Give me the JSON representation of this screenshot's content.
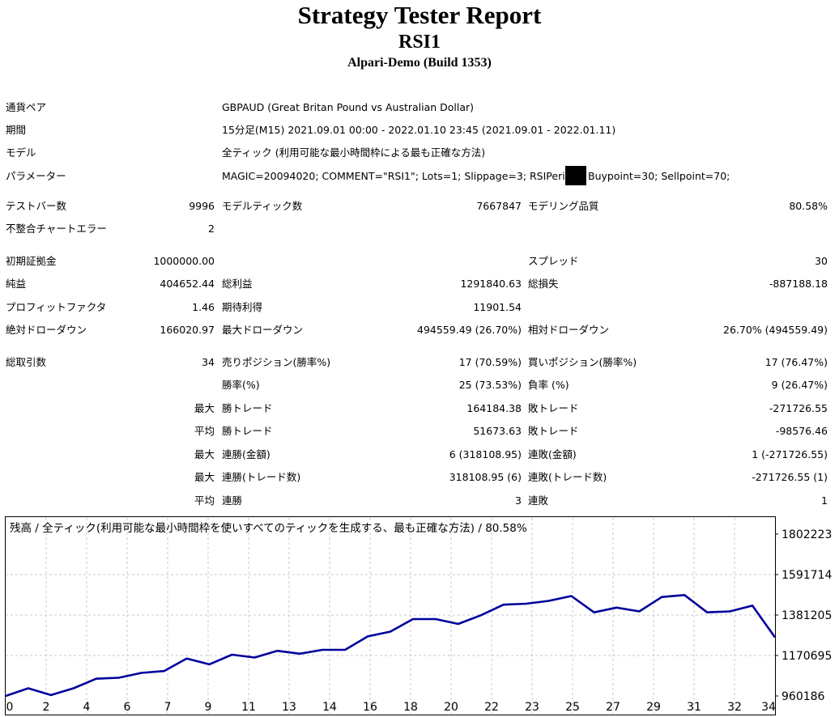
{
  "report": {
    "title": "Strategy Tester Report",
    "subtitle": "RSI1",
    "server": "Alpari-Demo (Build 1353)"
  },
  "summary": {
    "symbol_label": "通貨ペア",
    "symbol_value": "GBPAUD (Great Britan Pound vs Australian Dollar)",
    "period_label": "期間",
    "period_value": "15分足(M15) 2021.09.01 00:00 - 2022.01.10 23:45 (2021.09.01 - 2022.01.11)",
    "model_label": "モデル",
    "model_value": "全ティック (利用可能な最小時間枠による最も正確な方法)",
    "params_label": "パラメーター",
    "params_value_1": "MAGIC=20094020; COMMENT=\"RSI1\"; Lots=1; Slippage=3; RSIPeriod=",
    "params_value_2": "Buypoint=30; Sellpoint=70;",
    "bars_label": "テストバー数",
    "bars_value": "9996",
    "ticks_label": "モデルティック数",
    "ticks_value": "7667847",
    "quality_label": "モデリング品質",
    "quality_value": "80.58%",
    "mismatch_label": "不整合チャートエラー",
    "mismatch_value": "2"
  },
  "results": {
    "deposit_label": "初期証拠金",
    "deposit_value": "1000000.00",
    "spread_label": "スプレッド",
    "spread_value": "30",
    "net_profit_label": "純益",
    "net_profit_value": "404652.44",
    "gross_profit_label": "総利益",
    "gross_profit_value": "1291840.63",
    "gross_loss_label": "総損失",
    "gross_loss_value": "-887188.18",
    "profit_factor_label": "プロフィットファクタ",
    "profit_factor_value": "1.46",
    "expected_payoff_label": "期待利得",
    "expected_payoff_value": "11901.54",
    "abs_dd_label": "絶対ドローダウン",
    "abs_dd_value": "166020.97",
    "max_dd_label": "最大ドローダウン",
    "max_dd_value": "494559.49 (26.70%)",
    "rel_dd_label": "相対ドローダウン",
    "rel_dd_value": "26.70% (494559.49)",
    "total_trades_label": "総取引数",
    "total_trades_value": "34",
    "short_label": "売りポジション(勝率%)",
    "short_value": "17 (70.59%)",
    "long_label": "買いポジション(勝率%)",
    "long_value": "17 (76.47%)",
    "win_rate_label": "勝率(%)",
    "win_rate_value": "25 (73.53%)",
    "loss_rate_label": "負率 (%)",
    "loss_rate_value": "9 (26.47%)",
    "largest_label": "最大",
    "largest_win_label": "勝トレード",
    "largest_win_value": "164184.38",
    "largest_loss_label": "敗トレード",
    "largest_loss_value": "-271726.55",
    "average_label": "平均",
    "avg_win_label": "勝トレード",
    "avg_win_value": "51673.63",
    "avg_loss_label": "敗トレード",
    "avg_loss_value": "-98576.46",
    "max_cons_label": "最大",
    "max_cons_wins_label": "連勝(金額)",
    "max_cons_wins_value": "6 (318108.95)",
    "max_cons_losses_label": "連敗(金額)",
    "max_cons_losses_value": "1 (-271726.55)",
    "max_cons2_label": "最大",
    "max_cons_profit_label": "連勝(トレード数)",
    "max_cons_profit_value": "318108.95 (6)",
    "max_cons_loss_label": "連敗(トレード数)",
    "max_cons_loss_value": "-271726.55 (1)",
    "avg_cons_label": "平均",
    "avg_cons_wins_label": "連勝",
    "avg_cons_wins_value": "3",
    "avg_cons_losses_label": "連敗",
    "avg_cons_losses_value": "1"
  },
  "chart_data": {
    "type": "line",
    "title": "残高 / 全ティック(利用可能な最小時間枠を使いすべてのティックを生成する、最も正確な方法) / 80.58%",
    "x_ticks": [
      "0",
      "2",
      "4",
      "6",
      "7",
      "9",
      "11",
      "13",
      "14",
      "16",
      "18",
      "20",
      "22",
      "23",
      "25",
      "27",
      "29",
      "31",
      "32",
      "34"
    ],
    "y_ticks": [
      "1802223",
      "1591714",
      "1381205",
      "1170695",
      "960186"
    ],
    "ylim": [
      960186,
      1802223
    ],
    "xlim": [
      0,
      34
    ],
    "x": [
      0,
      1,
      2,
      3,
      4,
      5,
      6,
      7,
      8,
      9,
      10,
      11,
      12,
      13,
      14,
      15,
      16,
      17,
      18,
      19,
      20,
      21,
      22,
      23,
      24,
      25,
      26,
      27,
      28,
      29,
      30,
      31,
      32,
      33,
      34
    ],
    "values": [
      960186,
      1000000,
      965000,
      1000000,
      1050000,
      1055000,
      1080000,
      1090000,
      1155000,
      1125000,
      1175000,
      1160000,
      1195000,
      1180000,
      1200000,
      1200000,
      1270000,
      1295000,
      1360000,
      1360000,
      1335000,
      1380000,
      1435000,
      1440000,
      1455000,
      1480000,
      1395000,
      1420000,
      1400000,
      1475000,
      1485000,
      1395000,
      1400000,
      1430000,
      1265000
    ],
    "line_color": "#00009c",
    "grid": true
  }
}
